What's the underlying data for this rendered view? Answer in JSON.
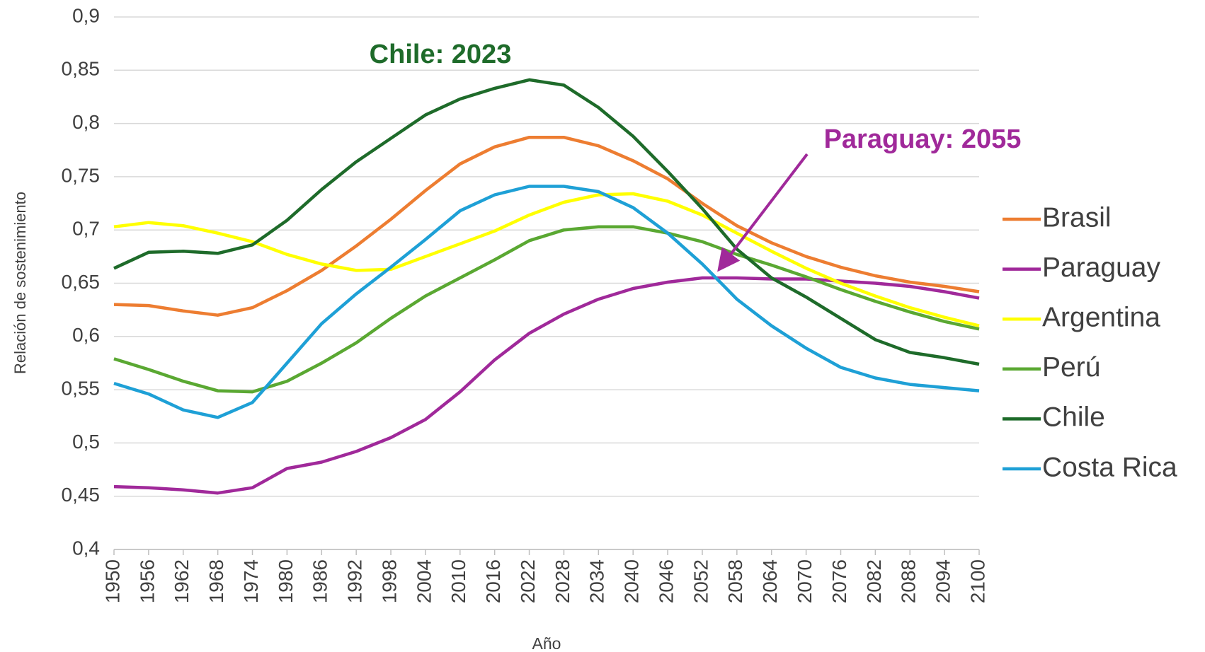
{
  "chart_data": {
    "type": "line",
    "x_label": "Año",
    "y_label": "Relación de sostenimiento",
    "annotations": [
      {
        "text": "Chile: 2023",
        "color": "#1e6b2a"
      },
      {
        "text": "Paraguay: 2055",
        "color": "#a0299a"
      }
    ],
    "x": [
      1950,
      1956,
      1962,
      1968,
      1974,
      1980,
      1986,
      1992,
      1998,
      2004,
      2010,
      2016,
      2022,
      2028,
      2034,
      2040,
      2046,
      2052,
      2058,
      2064,
      2070,
      2076,
      2082,
      2088,
      2094,
      2100
    ],
    "xlim": [
      1950,
      2100
    ],
    "xticks": [
      1950,
      1956,
      1962,
      1968,
      1974,
      1980,
      1986,
      1992,
      1998,
      2004,
      2010,
      2016,
      2022,
      2028,
      2034,
      2040,
      2046,
      2052,
      2058,
      2064,
      2070,
      2076,
      2082,
      2088,
      2094,
      2100
    ],
    "ylim": [
      0.4,
      0.9
    ],
    "yticks": [
      {
        "value": 0.4,
        "label": "0,4"
      },
      {
        "value": 0.45,
        "label": "0,45"
      },
      {
        "value": 0.5,
        "label": "0,5"
      },
      {
        "value": 0.55,
        "label": "0,55"
      },
      {
        "value": 0.6,
        "label": "0,6"
      },
      {
        "value": 0.65,
        "label": "0,65"
      },
      {
        "value": 0.7,
        "label": "0,7"
      },
      {
        "value": 0.75,
        "label": "0,75"
      },
      {
        "value": 0.8,
        "label": "0,8"
      },
      {
        "value": 0.85,
        "label": "0,85"
      },
      {
        "value": 0.9,
        "label": "0,9"
      }
    ],
    "grid": true,
    "legend": "right",
    "series": [
      {
        "name": "Brasil",
        "color": "#ed7d31",
        "values": [
          0.63,
          0.629,
          0.624,
          0.62,
          0.627,
          0.643,
          0.662,
          0.685,
          0.71,
          0.737,
          0.762,
          0.778,
          0.787,
          0.787,
          0.779,
          0.765,
          0.748,
          0.725,
          0.704,
          0.688,
          0.675,
          0.665,
          0.657,
          0.651,
          0.647,
          0.642
        ]
      },
      {
        "name": "Paraguay",
        "color": "#a0299a",
        "values": [
          0.459,
          0.458,
          0.456,
          0.453,
          0.458,
          0.476,
          0.482,
          0.492,
          0.505,
          0.522,
          0.548,
          0.578,
          0.603,
          0.621,
          0.635,
          0.645,
          0.651,
          0.655,
          0.655,
          0.654,
          0.654,
          0.652,
          0.65,
          0.647,
          0.642,
          0.636
        ]
      },
      {
        "name": "Argentina",
        "color": "#ffff00",
        "values": [
          0.703,
          0.707,
          0.704,
          0.697,
          0.689,
          0.677,
          0.668,
          0.662,
          0.663,
          0.675,
          0.687,
          0.699,
          0.714,
          0.726,
          0.733,
          0.734,
          0.727,
          0.714,
          0.697,
          0.68,
          0.664,
          0.65,
          0.638,
          0.627,
          0.618,
          0.61
        ]
      },
      {
        "name": "Perú",
        "color": "#5aa832",
        "values": [
          0.579,
          0.569,
          0.558,
          0.549,
          0.548,
          0.558,
          0.575,
          0.594,
          0.617,
          0.638,
          0.655,
          0.672,
          0.69,
          0.7,
          0.703,
          0.703,
          0.697,
          0.689,
          0.677,
          0.667,
          0.656,
          0.644,
          0.633,
          0.623,
          0.614,
          0.607
        ]
      },
      {
        "name": "Chile",
        "color": "#1e6b2a",
        "values": [
          0.664,
          0.679,
          0.68,
          0.678,
          0.686,
          0.709,
          0.738,
          0.764,
          0.786,
          0.808,
          0.823,
          0.833,
          0.841,
          0.836,
          0.815,
          0.788,
          0.755,
          0.72,
          0.682,
          0.655,
          0.637,
          0.617,
          0.597,
          0.585,
          0.58,
          0.574
        ]
      },
      {
        "name": "Costa Rica",
        "color": "#1ea0d6",
        "values": [
          0.556,
          0.546,
          0.531,
          0.524,
          0.538,
          0.575,
          0.612,
          0.64,
          0.665,
          0.691,
          0.718,
          0.733,
          0.741,
          0.741,
          0.736,
          0.721,
          0.697,
          0.668,
          0.635,
          0.61,
          0.589,
          0.571,
          0.561,
          0.555,
          0.552,
          0.549
        ]
      }
    ]
  }
}
